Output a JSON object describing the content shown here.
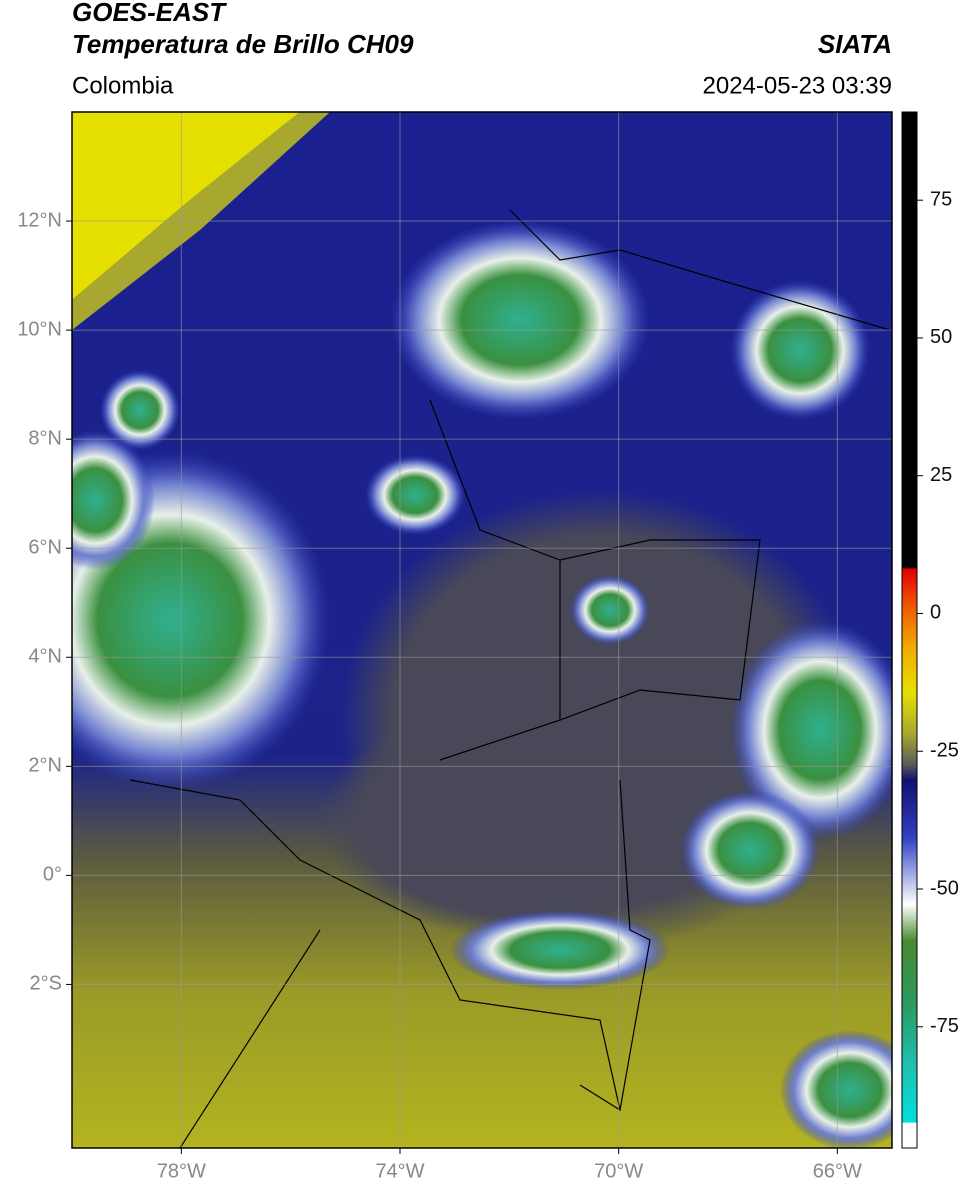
{
  "header": {
    "title": "GOES-EAST",
    "subtitle": "Temperatura de Brillo CH09",
    "source": "SIATA",
    "region": "Colombia",
    "datetime": "2024-05-23 03:39"
  },
  "map": {
    "lonlim": [
      -80,
      -65
    ],
    "latlim": [
      -5,
      14
    ],
    "lonticks": [
      {
        "value": -78,
        "label": "78°W"
      },
      {
        "value": -74,
        "label": "74°W"
      },
      {
        "value": -70,
        "label": "70°W"
      },
      {
        "value": -66,
        "label": "66°W"
      }
    ],
    "latticks": [
      {
        "value": 12,
        "label": "12°N"
      },
      {
        "value": 10,
        "label": "10°N"
      },
      {
        "value": 8,
        "label": "8°N"
      },
      {
        "value": 6,
        "label": "6°N"
      },
      {
        "value": 4,
        "label": "4°N"
      },
      {
        "value": 2,
        "label": "2°N"
      },
      {
        "value": 0,
        "label": "0°"
      },
      {
        "value": -2,
        "label": "2°S"
      }
    ],
    "grid": true
  },
  "colorbar": {
    "lim": [
      -97,
      91
    ],
    "ticks": [
      75,
      50,
      25,
      0,
      -25,
      -50,
      -75
    ]
  }
}
